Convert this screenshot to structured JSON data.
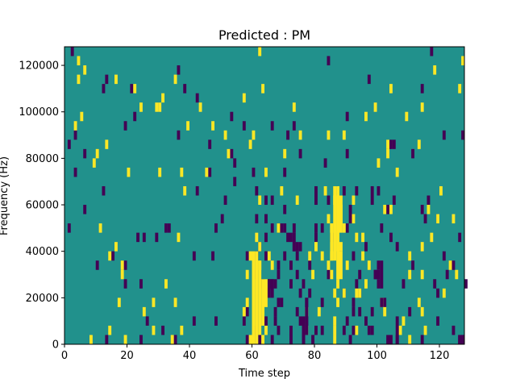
{
  "chart_data": {
    "type": "heatmap",
    "title": "Predicted : PM",
    "xlabel": "Time step",
    "ylabel": "Frequency (Hz)",
    "xlim": [
      0,
      128
    ],
    "ylim": [
      0,
      128000
    ],
    "xticks": [
      0,
      20,
      40,
      60,
      80,
      100,
      120
    ],
    "yticks": [
      0,
      20000,
      40000,
      60000,
      80000,
      100000,
      120000
    ],
    "xtick_labels": [
      "0",
      "20",
      "40",
      "60",
      "80",
      "100",
      "120"
    ],
    "ytick_labels": [
      "0",
      "20000",
      "40000",
      "60000",
      "80000",
      "100000",
      "120000"
    ],
    "grid": false,
    "colormap": {
      "low": "#440154",
      "background": "#21918c",
      "high": "#fde725"
    },
    "background_value": 0,
    "cell_height": 4000,
    "cells_low": [
      [
        2,
        124000
      ],
      [
        13,
        112000
      ],
      [
        21,
        108000
      ],
      [
        33,
        48000
      ],
      [
        38,
        108000
      ],
      [
        42,
        104000
      ],
      [
        42,
        64000
      ],
      [
        41,
        36000
      ],
      [
        47,
        36000
      ],
      [
        48,
        48000
      ],
      [
        48,
        8000
      ],
      [
        41,
        8000
      ],
      [
        31,
        4000
      ],
      [
        35,
        0
      ],
      [
        10,
        32000
      ],
      [
        15,
        36000
      ],
      [
        19,
        32000
      ],
      [
        13,
        0
      ],
      [
        29,
        44000
      ],
      [
        24,
        24000
      ],
      [
        25,
        44000
      ],
      [
        12,
        64000
      ],
      [
        6,
        56000
      ],
      [
        1,
        48000
      ],
      [
        3,
        72000
      ],
      [
        6,
        80000
      ],
      [
        3,
        88000
      ],
      [
        19,
        24000
      ],
      [
        24,
        0
      ],
      [
        26,
        8000
      ],
      [
        50,
        52000
      ],
      [
        51,
        60000
      ],
      [
        58,
        36000
      ],
      [
        58,
        12000
      ],
      [
        57,
        8000
      ],
      [
        58,
        0
      ],
      [
        60,
        28000
      ],
      [
        61,
        36000
      ],
      [
        62,
        40000
      ],
      [
        62,
        0
      ],
      [
        64,
        8000
      ],
      [
        64,
        20000
      ],
      [
        64,
        36000
      ],
      [
        66,
        60000
      ],
      [
        66,
        48000
      ],
      [
        66,
        24000
      ],
      [
        66,
        0
      ],
      [
        67,
        24000
      ],
      [
        67,
        12000
      ],
      [
        68,
        28000
      ],
      [
        68,
        32000
      ],
      [
        68,
        4000
      ],
      [
        70,
        36000
      ],
      [
        70,
        48000
      ],
      [
        70,
        56000
      ],
      [
        70,
        72000
      ],
      [
        71,
        88000
      ],
      [
        72,
        32000
      ],
      [
        72,
        24000
      ],
      [
        72,
        4000
      ],
      [
        72,
        0
      ],
      [
        73,
        40000
      ],
      [
        73,
        44000
      ],
      [
        74,
        36000
      ],
      [
        74,
        28000
      ],
      [
        74,
        12000
      ],
      [
        75,
        20000
      ],
      [
        75,
        8000
      ],
      [
        76,
        24000
      ],
      [
        76,
        0
      ],
      [
        76,
        4000
      ],
      [
        77,
        16000
      ],
      [
        77,
        8000
      ],
      [
        78,
        32000
      ],
      [
        78,
        20000
      ],
      [
        79,
        0
      ],
      [
        80,
        48000
      ],
      [
        80,
        44000
      ],
      [
        80,
        60000
      ],
      [
        80,
        64000
      ],
      [
        82,
        48000
      ],
      [
        82,
        4000
      ],
      [
        84,
        60000
      ],
      [
        84,
        120000
      ],
      [
        89,
        20000
      ],
      [
        89,
        4000
      ],
      [
        89,
        64000
      ],
      [
        90,
        8000
      ],
      [
        90,
        48000
      ],
      [
        90,
        96000
      ],
      [
        91,
        56000
      ],
      [
        91,
        52000
      ],
      [
        92,
        36000
      ],
      [
        92,
        16000
      ],
      [
        92,
        12000
      ],
      [
        93,
        64000
      ],
      [
        94,
        28000
      ],
      [
        94,
        20000
      ],
      [
        96,
        40000
      ],
      [
        96,
        8000
      ],
      [
        97,
        4000
      ],
      [
        98,
        64000
      ],
      [
        98,
        60000
      ],
      [
        98,
        12000
      ],
      [
        99,
        28000
      ],
      [
        100,
        24000
      ],
      [
        100,
        32000
      ],
      [
        101,
        48000
      ],
      [
        102,
        16000
      ],
      [
        103,
        0
      ],
      [
        104,
        44000
      ],
      [
        105,
        60000
      ],
      [
        105,
        84000
      ],
      [
        106,
        0
      ],
      [
        106,
        40000
      ],
      [
        108,
        24000
      ],
      [
        110,
        12000
      ],
      [
        111,
        80000
      ],
      [
        114,
        56000
      ],
      [
        114,
        0
      ],
      [
        114,
        108000
      ],
      [
        115,
        52000
      ],
      [
        117,
        124000
      ],
      [
        118,
        24000
      ],
      [
        119,
        52000
      ],
      [
        119,
        8000
      ],
      [
        121,
        88000
      ],
      [
        122,
        28000
      ],
      [
        124,
        4000
      ],
      [
        124,
        32000
      ],
      [
        126,
        44000
      ],
      [
        127,
        88000
      ],
      [
        127,
        0
      ],
      [
        126,
        0
      ],
      [
        127,
        0
      ],
      [
        104,
        84000
      ],
      [
        53,
        96000
      ],
      [
        53,
        80000
      ],
      [
        60,
        72000
      ],
      [
        46,
        84000
      ],
      [
        46,
        72000
      ],
      [
        54,
        68000
      ],
      [
        54,
        76000
      ],
      [
        83,
        76000
      ],
      [
        75,
        80000
      ],
      [
        73,
        92000
      ],
      [
        66,
        92000
      ],
      [
        61,
        64000
      ],
      [
        61,
        52000
      ],
      [
        64,
        52000
      ],
      [
        64,
        44000
      ],
      [
        36,
        116000
      ],
      [
        36,
        88000
      ],
      [
        68,
        16000
      ],
      [
        69,
        16000
      ],
      [
        63,
        24000
      ],
      [
        65,
        24000
      ],
      [
        60,
        4000
      ],
      [
        22,
        96000
      ],
      [
        1,
        84000
      ],
      [
        19,
        92000
      ],
      [
        12,
        108000
      ],
      [
        103,
        56000
      ],
      [
        90,
        80000
      ],
      [
        93,
        24000
      ],
      [
        111,
        32000
      ],
      [
        119,
        20000
      ],
      [
        32,
        48000
      ],
      [
        23,
        44000
      ],
      [
        64,
        60000
      ],
      [
        84,
        28000
      ],
      [
        100,
        64000
      ],
      [
        71,
        44000
      ],
      [
        72,
        44000
      ],
      [
        73,
        48000
      ],
      [
        98,
        4000
      ],
      [
        94,
        12000
      ],
      [
        121,
        36000
      ],
      [
        128,
        24000
      ],
      [
        57,
        92000
      ],
      [
        97,
        112000
      ],
      [
        116,
        60000
      ],
      [
        68,
        48000
      ],
      [
        69,
        48000
      ],
      [
        82,
        16000
      ],
      [
        85,
        44000
      ]
    ],
    "cells_high": [
      [
        4,
        112000
      ],
      [
        4,
        120000
      ],
      [
        8,
        0
      ],
      [
        10,
        80000
      ],
      [
        14,
        4000
      ],
      [
        17,
        16000
      ],
      [
        18,
        28000
      ],
      [
        18,
        32000
      ],
      [
        16,
        40000
      ],
      [
        19,
        0
      ],
      [
        20,
        72000
      ],
      [
        22,
        108000
      ],
      [
        25,
        12000
      ],
      [
        30,
        100000
      ],
      [
        31,
        104000
      ],
      [
        32,
        24000
      ],
      [
        35,
        16000
      ],
      [
        37,
        4000
      ],
      [
        38,
        64000
      ],
      [
        36,
        44000
      ],
      [
        39,
        92000
      ],
      [
        43,
        100000
      ],
      [
        45,
        72000
      ],
      [
        47,
        92000
      ],
      [
        51,
        88000
      ],
      [
        52,
        80000
      ],
      [
        57,
        104000
      ],
      [
        62,
        124000
      ],
      [
        63,
        108000
      ],
      [
        59,
        84000
      ],
      [
        60,
        88000
      ],
      [
        62,
        32000
      ],
      [
        61,
        44000
      ],
      [
        62,
        60000
      ],
      [
        64,
        72000
      ],
      [
        65,
        36000
      ],
      [
        66,
        32000
      ],
      [
        68,
        48000
      ],
      [
        69,
        64000
      ],
      [
        70,
        80000
      ],
      [
        73,
        100000
      ],
      [
        74,
        60000
      ],
      [
        75,
        88000
      ],
      [
        77,
        12000
      ],
      [
        77,
        4000
      ],
      [
        78,
        36000
      ],
      [
        79,
        28000
      ],
      [
        80,
        40000
      ],
      [
        81,
        12000
      ],
      [
        82,
        36000
      ],
      [
        84,
        32000
      ],
      [
        86,
        4000
      ],
      [
        86,
        8000
      ],
      [
        86,
        20000
      ],
      [
        87,
        24000
      ],
      [
        88,
        40000
      ],
      [
        89,
        20000
      ],
      [
        89,
        48000
      ],
      [
        90,
        32000
      ],
      [
        92,
        60000
      ],
      [
        92,
        52000
      ],
      [
        93,
        4000
      ],
      [
        93,
        44000
      ],
      [
        93,
        20000
      ],
      [
        94,
        20000
      ],
      [
        95,
        36000
      ],
      [
        95,
        44000
      ],
      [
        96,
        24000
      ],
      [
        97,
        32000
      ],
      [
        99,
        100000
      ],
      [
        101,
        16000
      ],
      [
        102,
        12000
      ],
      [
        103,
        80000
      ],
      [
        104,
        56000
      ],
      [
        106,
        72000
      ],
      [
        107,
        4000
      ],
      [
        108,
        8000
      ],
      [
        109,
        96000
      ],
      [
        110,
        28000
      ],
      [
        110,
        36000
      ],
      [
        113,
        84000
      ],
      [
        114,
        40000
      ],
      [
        113,
        16000
      ],
      [
        114,
        28000
      ],
      [
        115,
        4000
      ],
      [
        116,
        56000
      ],
      [
        118,
        116000
      ],
      [
        119,
        52000
      ],
      [
        120,
        64000
      ],
      [
        121,
        20000
      ],
      [
        123,
        32000
      ],
      [
        124,
        52000
      ],
      [
        125,
        28000
      ],
      [
        126,
        108000
      ],
      [
        127,
        120000
      ],
      [
        59,
        36000
      ],
      [
        57,
        12000
      ],
      [
        58,
        16000
      ],
      [
        58,
        28000
      ],
      [
        62,
        40000
      ],
      [
        63,
        0
      ],
      [
        64,
        4000
      ],
      [
        83,
        64000
      ],
      [
        84,
        52000
      ],
      [
        85,
        36000
      ],
      [
        85,
        48000
      ],
      [
        86,
        0
      ],
      [
        85,
        28000
      ],
      [
        5,
        96000
      ],
      [
        3,
        92000
      ],
      [
        6,
        116000
      ],
      [
        9,
        76000
      ],
      [
        11,
        48000
      ],
      [
        14,
        36000
      ],
      [
        16,
        112000
      ],
      [
        24,
        100000
      ],
      [
        28,
        4000
      ],
      [
        28,
        16000
      ],
      [
        29,
        100000
      ],
      [
        30,
        72000
      ],
      [
        34,
        0
      ],
      [
        35,
        112000
      ],
      [
        37,
        72000
      ],
      [
        13,
        84000
      ],
      [
        84,
        88000
      ],
      [
        89,
        88000
      ],
      [
        96,
        96000
      ],
      [
        100,
        76000
      ],
      [
        117,
        44000
      ],
      [
        104,
        108000
      ],
      [
        114,
        12000
      ],
      [
        114,
        100000
      ],
      [
        102,
        56000
      ],
      [
        103,
        84000
      ],
      [
        110,
        0
      ]
    ],
    "bands_high": [
      [
        59,
        0,
        4000
      ],
      [
        60,
        0,
        40000
      ],
      [
        61,
        0,
        40000
      ],
      [
        62,
        4000,
        36000
      ],
      [
        63,
        8000,
        28000
      ],
      [
        64,
        16000,
        28000
      ],
      [
        86,
        36000,
        64000
      ],
      [
        87,
        28000,
        68000
      ],
      [
        88,
        28000,
        40000
      ],
      [
        87,
        40000,
        64000
      ],
      [
        88,
        48000,
        64000
      ],
      [
        85,
        36000,
        52000
      ],
      [
        86,
        60000,
        68000
      ],
      [
        88,
        52000,
        60000
      ],
      [
        87,
        16000,
        20000
      ]
    ],
    "bands_low": [
      [
        73,
        40000,
        44000
      ],
      [
        74,
        40000,
        44000
      ],
      [
        75,
        40000,
        44000
      ],
      [
        65,
        20000,
        28000
      ],
      [
        66,
        20000,
        28000
      ],
      [
        67,
        8000,
        12000
      ],
      [
        99,
        28000,
        32000
      ],
      [
        100,
        28000,
        32000
      ],
      [
        101,
        24000,
        36000
      ],
      [
        101,
        16000,
        20000
      ],
      [
        76,
        0,
        12000
      ],
      [
        77,
        4000,
        20000
      ],
      [
        80,
        4000,
        8000
      ],
      [
        91,
        0,
        4000
      ],
      [
        92,
        4000,
        8000
      ],
      [
        104,
        0,
        4000
      ],
      [
        106,
        0,
        12000
      ],
      [
        126,
        0,
        4000
      ],
      [
        127,
        0,
        4000
      ]
    ]
  }
}
